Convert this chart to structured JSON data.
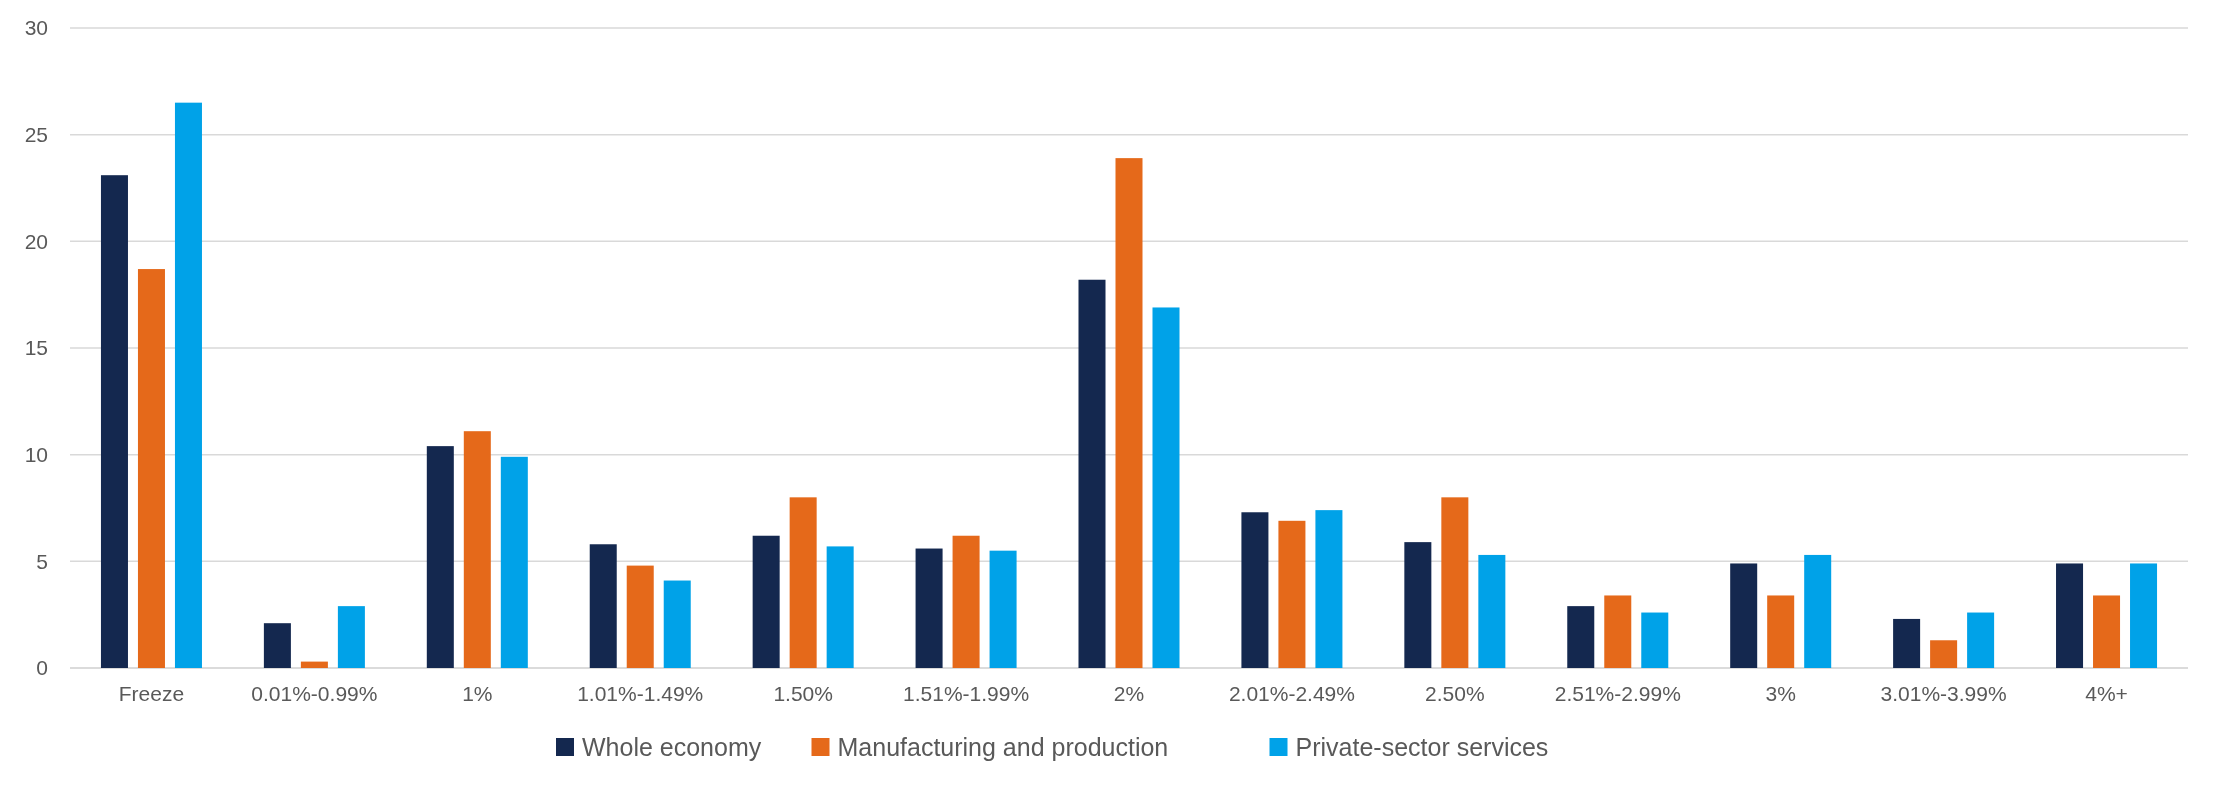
{
  "chart_data": {
    "type": "bar",
    "categories": [
      "Freeze",
      "0.01%-0.99%",
      "1%",
      "1.01%-1.49%",
      "1.50%",
      "1.51%-1.99%",
      "2%",
      "2.01%-2.49%",
      "2.50%",
      "2.51%-2.99%",
      "3%",
      "3.01%-3.99%",
      "4%+"
    ],
    "series": [
      {
        "name": "Whole economy",
        "color": "#14284f",
        "values": [
          23.1,
          2.1,
          10.4,
          5.8,
          6.2,
          5.6,
          18.2,
          7.3,
          5.9,
          2.9,
          4.9,
          2.3,
          4.9
        ]
      },
      {
        "name": "Manufacturing and production",
        "color": "#e5691a",
        "values": [
          18.7,
          0.3,
          11.1,
          4.8,
          8.0,
          6.2,
          23.9,
          6.9,
          8.0,
          3.4,
          3.4,
          1.3,
          3.4
        ]
      },
      {
        "name": "Private-sector services",
        "color": "#00a2e8",
        "values": [
          26.5,
          2.9,
          9.9,
          4.1,
          5.7,
          5.5,
          16.9,
          7.4,
          5.3,
          2.6,
          5.3,
          2.6,
          4.9
        ]
      }
    ],
    "ylim": [
      0,
      30
    ],
    "yticks": [
      0,
      5,
      10,
      15,
      20,
      25,
      30
    ],
    "grid": "y",
    "legend": "bottom"
  }
}
